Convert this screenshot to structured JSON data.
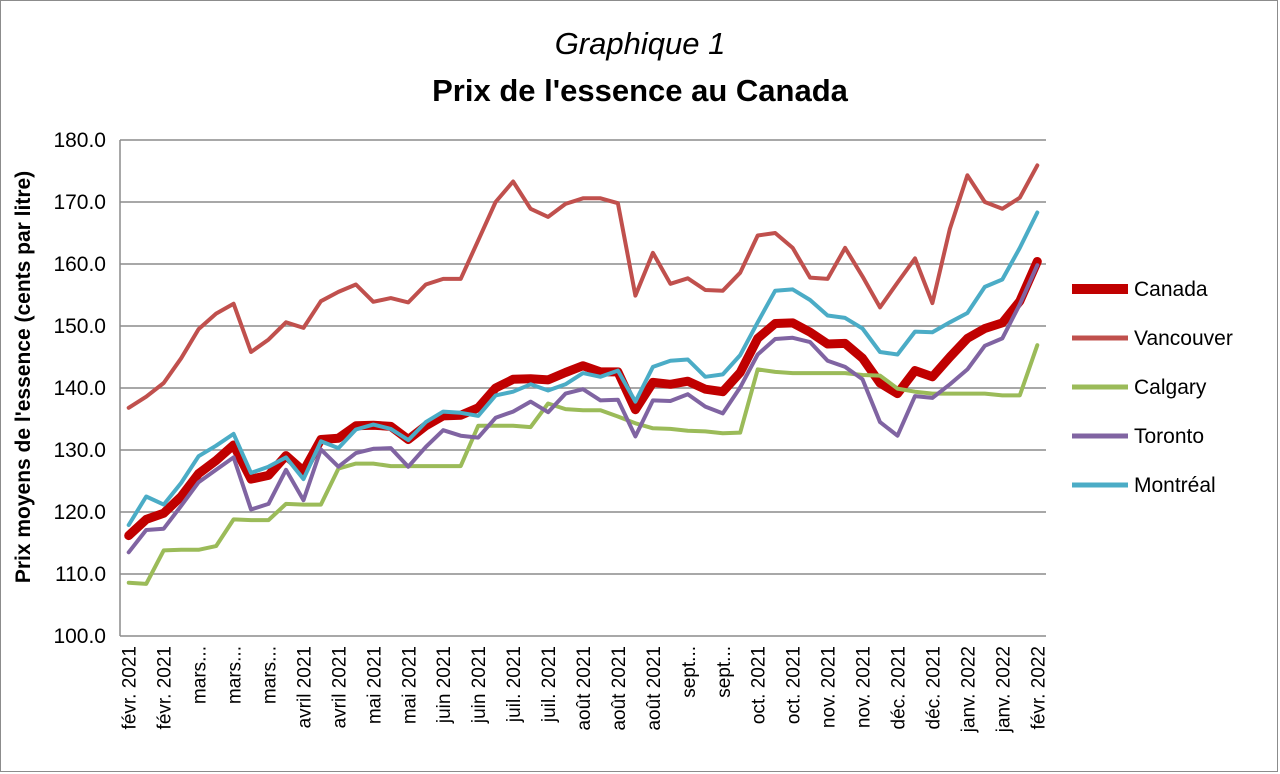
{
  "chart_data": {
    "type": "line",
    "title_line1": "Graphique 1",
    "title_line2": "Prix de l'essence au Canada",
    "ylabel": "Prix moyens de l'essence (cents par litre)",
    "xlabel": "",
    "ylim": [
      100,
      180
    ],
    "yticks": [
      "100.0",
      "110.0",
      "120.0",
      "130.0",
      "140.0",
      "150.0",
      "160.0",
      "170.0",
      "180.0"
    ],
    "grid": "horizontal",
    "legend_position": "right",
    "x_labels": [
      "févr. 2021",
      "févr. 2021",
      "mars...",
      "mars...",
      "mars...",
      "avril 2021",
      "avril 2021",
      "mai 2021",
      "mai 2021",
      "juin 2021",
      "juin 2021",
      "juil. 2021",
      "juil. 2021",
      "août 2021",
      "août 2021",
      "août 2021",
      "sept...",
      "sept...",
      "oct. 2021",
      "oct. 2021",
      "nov. 2021",
      "nov. 2021",
      "déc. 2021",
      "déc. 2021",
      "janv. 2022",
      "janv. 2022",
      "févr. 2022"
    ],
    "series": [
      {
        "name": "Canada",
        "color": "#c00000",
        "width": 9,
        "values": [
          116.2,
          118.8,
          119.8,
          122.5,
          126.2,
          128.3,
          130.8,
          125.3,
          125.9,
          129.1,
          126.6,
          131.7,
          131.9,
          133.9,
          134.0,
          133.8,
          131.7,
          133.9,
          135.5,
          135.6,
          136.8,
          140.0,
          141.4,
          141.5,
          141.3,
          142.5,
          143.6,
          142.6,
          142.6,
          136.5,
          140.9,
          140.6,
          141.1,
          139.8,
          139.4,
          142.5,
          148.0,
          150.4,
          150.5,
          149.0,
          147.1,
          147.2,
          144.8,
          140.8,
          139.1,
          142.8,
          141.8,
          145.0,
          148.0,
          149.6,
          150.5,
          154.0,
          160.4
        ]
      },
      {
        "name": "Vancouver",
        "color": "#c0504d",
        "width": 4,
        "values": [
          136.8,
          138.6,
          140.8,
          144.8,
          149.5,
          152.0,
          153.6,
          145.8,
          147.8,
          150.6,
          149.7,
          154.0,
          155.5,
          156.7,
          153.9,
          154.5,
          153.8,
          156.7,
          157.6,
          157.6,
          163.8,
          170.0,
          173.3,
          168.9,
          167.6,
          169.7,
          170.6,
          170.6,
          169.8,
          154.9,
          161.8,
          156.8,
          157.7,
          155.8,
          155.7,
          158.6,
          164.6,
          165.0,
          162.6,
          157.8,
          157.6,
          162.6,
          158.0,
          153.0,
          157.0,
          160.9,
          153.7,
          165.7,
          174.3,
          170.0,
          168.9,
          170.7,
          175.9
        ]
      },
      {
        "name": "Calgary",
        "color": "#9bbb59",
        "width": 4,
        "values": [
          108.6,
          108.4,
          113.8,
          113.9,
          113.9,
          114.5,
          118.8,
          118.7,
          118.7,
          121.3,
          121.2,
          121.2,
          127.0,
          127.8,
          127.8,
          127.4,
          127.4,
          127.4,
          127.4,
          127.4,
          133.9,
          133.9,
          133.9,
          133.7,
          137.5,
          136.6,
          136.4,
          136.4,
          135.4,
          134.3,
          133.5,
          133.4,
          133.1,
          133.0,
          132.7,
          132.8,
          143.0,
          142.6,
          142.4,
          142.4,
          142.4,
          142.4,
          142.1,
          142.0,
          139.9,
          139.4,
          139.1,
          139.1,
          139.1,
          139.1,
          138.8,
          138.8,
          146.9
        ]
      },
      {
        "name": "Toronto",
        "color": "#8064a2",
        "width": 4,
        "values": [
          113.5,
          117.1,
          117.3,
          121.0,
          124.8,
          126.8,
          128.8,
          120.4,
          121.3,
          126.8,
          121.9,
          130.1,
          127.3,
          129.5,
          130.2,
          130.3,
          127.3,
          130.5,
          133.2,
          132.3,
          132.0,
          135.2,
          136.2,
          137.8,
          136.1,
          139.1,
          139.8,
          138.0,
          138.1,
          132.2,
          138.0,
          137.9,
          139.0,
          137.0,
          135.9,
          140.1,
          145.4,
          147.9,
          148.1,
          147.4,
          144.4,
          143.4,
          141.4,
          134.5,
          132.3,
          138.7,
          138.4,
          140.6,
          143.0,
          146.8,
          148.0,
          153.5,
          159.8
        ]
      },
      {
        "name": "Montréal",
        "color": "#4bacc6",
        "width": 4,
        "values": [
          117.9,
          122.5,
          121.2,
          124.7,
          129.0,
          130.7,
          132.6,
          126.3,
          127.3,
          128.8,
          125.3,
          131.4,
          130.3,
          133.3,
          134.1,
          133.4,
          131.6,
          134.5,
          136.2,
          136.0,
          135.5,
          138.8,
          139.4,
          140.6,
          139.6,
          140.6,
          142.4,
          141.8,
          142.8,
          137.8,
          143.4,
          144.4,
          144.6,
          141.8,
          142.2,
          145.3,
          150.6,
          155.7,
          155.9,
          154.2,
          151.7,
          151.3,
          149.6,
          145.8,
          145.4,
          149.1,
          149.0,
          150.6,
          152.1,
          156.3,
          157.5,
          162.6,
          168.3
        ]
      }
    ]
  }
}
